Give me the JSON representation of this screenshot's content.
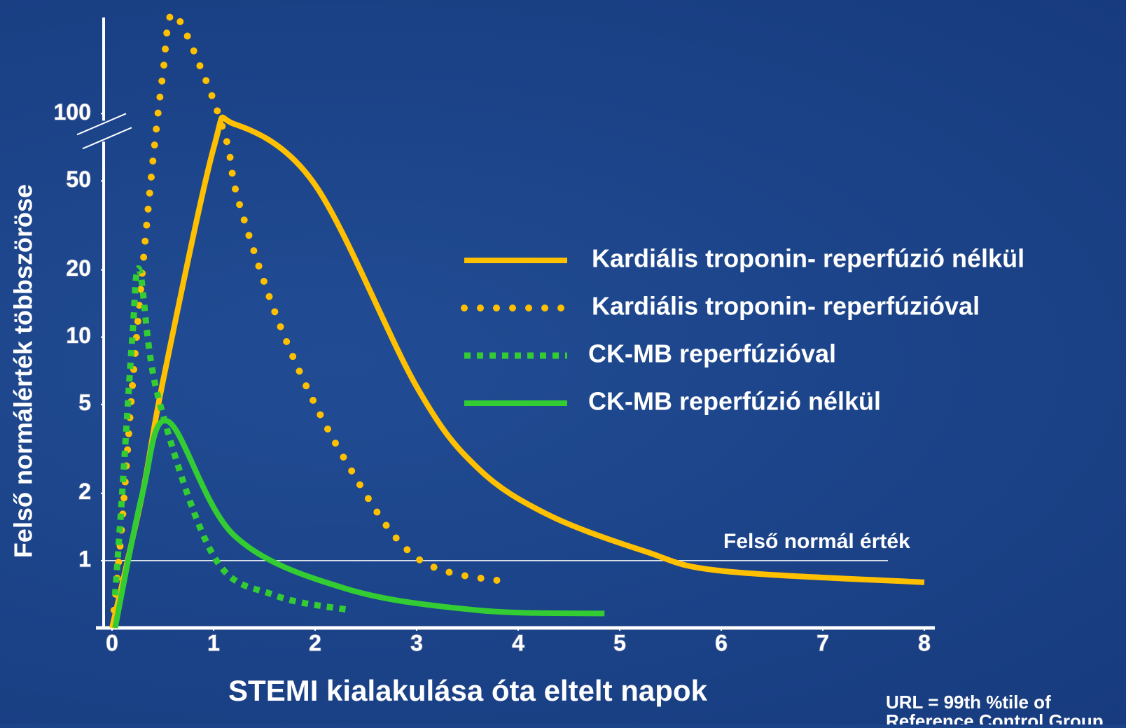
{
  "chart_data": {
    "type": "line",
    "y_label": "Felső normálérték többszöröse",
    "x_label": "STEMI kialakulása óta eltelt napok",
    "footnote": [
      "URL = 99th %tile of",
      "Reference Control Group"
    ],
    "log_scale_y": true,
    "xlim": [
      0,
      8
    ],
    "xticks": [
      0,
      1,
      2,
      3,
      4,
      5,
      6,
      7,
      8
    ],
    "ylim": [
      0.5,
      300
    ],
    "yticks": [
      1,
      2,
      5,
      10,
      20,
      50,
      100
    ],
    "reference_line": {
      "value": 1,
      "label": "Felső normál érték"
    },
    "series": [
      {
        "name": "Kardiális troponin- reperfúzió nélkül",
        "color": "#ffc000",
        "style": "solid",
        "x": [
          0,
          0.3,
          0.5,
          1,
          1.2,
          2,
          3,
          3.6,
          4.3,
          5.25,
          6,
          8
        ],
        "values": [
          0.5,
          2,
          6.3,
          70,
          90,
          48,
          6,
          2.6,
          1.6,
          1.1,
          0.9,
          0.8
        ]
      },
      {
        "name": "Kardiális troponin- reperfúzióval",
        "color": "#ffc000",
        "style": "dotted",
        "x": [
          0.02,
          0.1,
          0.2,
          0.3,
          0.4,
          0.5,
          0.6,
          0.9,
          1.13,
          1.25,
          1.7,
          2.3,
          3,
          3.9
        ],
        "values": [
          0.6,
          1.5,
          6,
          20,
          60,
          150,
          280,
          150,
          75,
          40,
          10,
          2.8,
          1.03,
          0.8
        ]
      },
      {
        "name": "CK-MB reperfúzióval",
        "color": "#33cc33",
        "style": "dashed",
        "x": [
          0.03,
          0.1,
          0.2,
          0.27,
          0.45,
          1,
          1.6,
          2.35
        ],
        "values": [
          0.7,
          2,
          10,
          20,
          5.5,
          1.05,
          0.7,
          0.6
        ]
      },
      {
        "name": "CK-MB reperfúzió nélkül",
        "color": "#33cc33",
        "style": "solid",
        "x": [
          0.03,
          0.3,
          0.55,
          1.2,
          2.3,
          3.6,
          4.85
        ],
        "values": [
          0.5,
          2,
          4.2,
          1.3,
          0.75,
          0.6,
          0.58
        ]
      }
    ]
  }
}
